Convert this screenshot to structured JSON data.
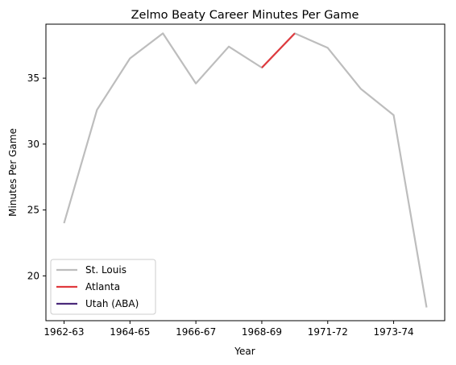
{
  "chart_data": {
    "type": "line",
    "title": "Zelmo Beaty Career Minutes Per Game",
    "xlabel": "Year",
    "ylabel": "Minutes Per Game",
    "x_tick_labels": [
      "1962-63",
      "1964-65",
      "1966-67",
      "1968-69",
      "1971-72",
      "1973-74"
    ],
    "y_ticks": [
      20,
      25,
      30,
      35
    ],
    "ylim": [
      16.6,
      39.1
    ],
    "grid": false,
    "legend_position": "lower-left",
    "series": [
      {
        "name": "St. Louis",
        "color": "#bdbdbd",
        "points": [
          {
            "x": "1962-63",
            "y": 24.0
          },
          {
            "x": "1963-64",
            "y": 32.6
          },
          {
            "x": "1964-65",
            "y": 36.5
          },
          {
            "x": "1965-66",
            "y": 38.4
          },
          {
            "x": "1966-67",
            "y": 34.6
          },
          {
            "x": "1967-68",
            "y": 37.4
          },
          {
            "x": "1968-69",
            "y": 35.8
          },
          {
            "x": "1969-70",
            "y": 38.4
          },
          {
            "x": "1971-72",
            "y": 37.3
          },
          {
            "x": "1972-73",
            "y": 34.2
          },
          {
            "x": "1973-74",
            "y": 32.2
          },
          {
            "x": "1974-75",
            "y": 17.6
          }
        ]
      },
      {
        "name": "Atlanta",
        "color": "#e03a3e",
        "points": [
          {
            "x": "1968-69",
            "y": 35.8
          },
          {
            "x": "1969-70",
            "y": 38.4
          }
        ]
      },
      {
        "name": "Utah (ABA)",
        "color": "#4b2a7b",
        "points": []
      }
    ]
  }
}
